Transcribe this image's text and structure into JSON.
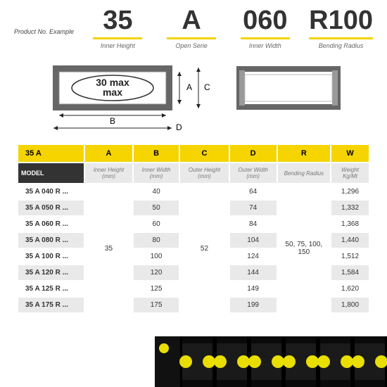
{
  "header": {
    "lead": "Product No. Example",
    "codes": [
      {
        "big": "35",
        "sub": "Inner Height"
      },
      {
        "big": "A",
        "sub": "Open Serie"
      },
      {
        "big": "060",
        "sub": "Inner Width"
      },
      {
        "big": "R100",
        "sub": "Bending Radius"
      }
    ]
  },
  "diagram": {
    "label_inside": "30 max",
    "dims": {
      "A": "A",
      "B": "B",
      "C": "C",
      "D": "D"
    }
  },
  "table": {
    "title_cell": "35 A",
    "model_label": "MODEL",
    "columns": [
      "A",
      "B",
      "C",
      "D",
      "R",
      "W"
    ],
    "subheads": [
      "Inner Height (mm)",
      "Inner Width (mm)",
      "Outer Height (mm)",
      "Outer Width (mm)",
      "Bending Radius",
      "Weight Kg/Mt"
    ],
    "merged_A": "35",
    "merged_C": "52",
    "merged_R": "50, 75, 100, 150",
    "rows": [
      {
        "model": "35 A 040 R ...",
        "B": "40",
        "D": "64",
        "W": "1,296"
      },
      {
        "model": "35 A 050 R ...",
        "B": "50",
        "D": "74",
        "W": "1,332"
      },
      {
        "model": "35 A 060 R ...",
        "B": "60",
        "D": "84",
        "W": "1,368"
      },
      {
        "model": "35 A 080 R ...",
        "B": "80",
        "D": "104",
        "W": "1,440"
      },
      {
        "model": "35 A 100 R ...",
        "B": "100",
        "D": "124",
        "W": "1,512"
      },
      {
        "model": "35 A 120 R ...",
        "B": "120",
        "D": "144",
        "W": "1,584"
      },
      {
        "model": "35 A 125 R ...",
        "B": "125",
        "D": "149",
        "W": "1,620"
      },
      {
        "model": "35 A 175 R ...",
        "B": "175",
        "D": "199",
        "W": "1,800"
      }
    ]
  },
  "colors": {
    "accent": "#f5d400",
    "dark": "#333333",
    "grey": "#e9e9e9"
  }
}
